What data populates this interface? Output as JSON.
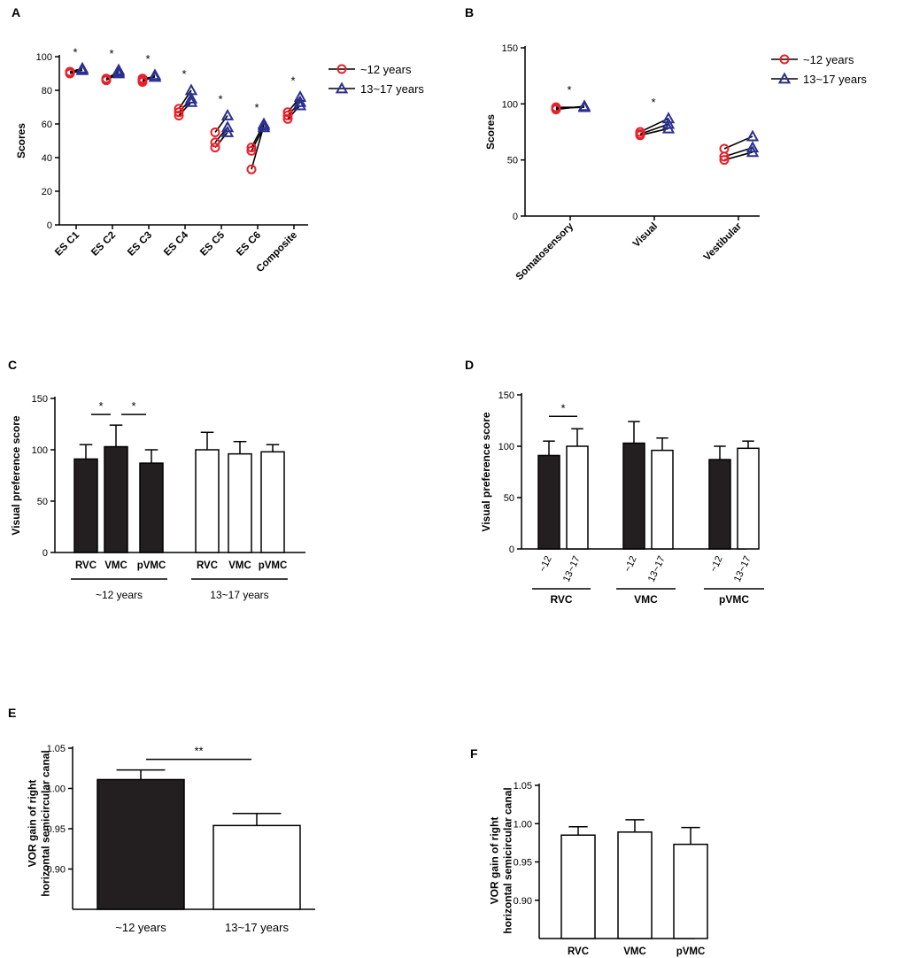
{
  "colors": {
    "young": "#e8202a",
    "old": "#2b2f8f",
    "bar_dark": "#231f20",
    "bar_light": "#ffffff",
    "axis": "#000000"
  },
  "legend": {
    "series_1": "~12 years",
    "series_2": "13~17 years"
  },
  "chart_data": [
    {
      "panel": "A",
      "type": "line",
      "ylabel": "Scores",
      "ylim": [
        0,
        100
      ],
      "yticks": [
        0,
        20,
        40,
        60,
        80,
        100
      ],
      "categories": [
        "ES C1",
        "ES C2",
        "ES C3",
        "ES C4",
        "ES C5",
        "ES C6",
        "Composite"
      ],
      "significance": [
        "*",
        "*",
        "*",
        "*",
        "*",
        "*",
        "*"
      ],
      "series": [
        {
          "name": "~12 years",
          "marker": "circle",
          "values": [
            [
              91,
              91,
              90
            ],
            [
              87,
              86,
              86
            ],
            [
              87,
              85,
              86
            ],
            [
              69,
              67,
              65
            ],
            [
              55,
              49,
              46
            ],
            [
              46,
              44,
              33
            ],
            [
              67,
              65,
              63
            ]
          ]
        },
        {
          "name": "13~17 years",
          "marker": "triangle",
          "values": [
            [
              92,
              93,
              92
            ],
            [
              91,
              92,
              90
            ],
            [
              88,
              89,
              88
            ],
            [
              80,
              75,
              73
            ],
            [
              65,
              58,
              55
            ],
            [
              60,
              58,
              59
            ],
            [
              76,
              73,
              71
            ]
          ]
        }
      ]
    },
    {
      "panel": "B",
      "type": "line",
      "ylabel": "Scores",
      "ylim": [
        0,
        150
      ],
      "yticks": [
        0,
        50,
        100,
        150
      ],
      "categories": [
        "Somatosensory",
        "Visual",
        "Vestibular"
      ],
      "significance": [
        "*",
        "*",
        ""
      ],
      "series": [
        {
          "name": "~12 years",
          "marker": "circle",
          "values": [
            [
              95,
              96,
              97
            ],
            [
              75,
              73,
              72
            ],
            [
              60,
              53,
              50
            ]
          ]
        },
        {
          "name": "13~17 years",
          "marker": "triangle",
          "values": [
            [
              98,
              97,
              97
            ],
            [
              87,
              82,
              78
            ],
            [
              71,
              61,
              57
            ]
          ]
        }
      ]
    },
    {
      "panel": "C",
      "type": "bar",
      "ylabel": "Visual preference score",
      "ylim": [
        0,
        150
      ],
      "yticks": [
        0,
        50,
        100,
        150
      ],
      "categories": [
        "RVC",
        "VMC",
        "pVMC",
        "RVC",
        "VMC",
        "pVMC"
      ],
      "groups": [
        "~12 years",
        "13~17 years"
      ],
      "values": [
        91,
        103,
        87,
        100,
        96,
        98
      ],
      "errors": [
        14,
        21,
        13,
        17,
        12,
        7
      ],
      "fills": [
        "dark",
        "dark",
        "dark",
        "light",
        "light",
        "light"
      ],
      "brackets": [
        {
          "from": 0,
          "to": 1,
          "label": "*"
        },
        {
          "from": 1,
          "to": 2,
          "label": "*"
        }
      ]
    },
    {
      "panel": "D",
      "type": "bar",
      "ylabel": "Visual preference score",
      "ylim": [
        0,
        150
      ],
      "yticks": [
        0,
        50,
        100,
        150
      ],
      "categories": [
        "~12",
        "13~17",
        "~12",
        "13~17",
        "~12",
        "13~17"
      ],
      "groups": [
        "RVC",
        "VMC",
        "pVMC"
      ],
      "values": [
        91,
        100,
        103,
        96,
        87,
        98
      ],
      "errors": [
        14,
        17,
        21,
        12,
        13,
        7
      ],
      "fills": [
        "dark",
        "light",
        "dark",
        "light",
        "dark",
        "light"
      ],
      "brackets": [
        {
          "from": 0,
          "to": 1,
          "label": "*"
        }
      ]
    },
    {
      "panel": "E",
      "type": "bar",
      "ylabel": "VOR gain of right horizontal semicircular canal",
      "ylabel_lines": [
        "VOR gain of right",
        "horizontal semicircular canal"
      ],
      "ylim": [
        0.85,
        1.05
      ],
      "yticks": [
        "0.90",
        "0.95",
        "1.00",
        "1.05"
      ],
      "categories": [
        "~12 years",
        "13~17 years"
      ],
      "values": [
        1.011,
        0.954
      ],
      "errors": [
        0.012,
        0.015
      ],
      "fills": [
        "dark",
        "light"
      ],
      "brackets": [
        {
          "from": 0,
          "to": 1,
          "label": "**"
        }
      ]
    },
    {
      "panel": "F",
      "type": "bar",
      "ylabel": "VOR gain of right horizontal semicircular canal",
      "ylabel_lines": [
        "VOR gain of right",
        "horizontal semicircular canal"
      ],
      "ylim": [
        0.85,
        1.05
      ],
      "yticks": [
        "0.90",
        "0.95",
        "1.00",
        "1.05"
      ],
      "categories": [
        "RVC",
        "VMC",
        "pVMC"
      ],
      "values": [
        0.985,
        0.989,
        0.973
      ],
      "errors": [
        0.011,
        0.016,
        0.022
      ],
      "fills": [
        "light",
        "light",
        "light"
      ],
      "brackets": []
    }
  ]
}
